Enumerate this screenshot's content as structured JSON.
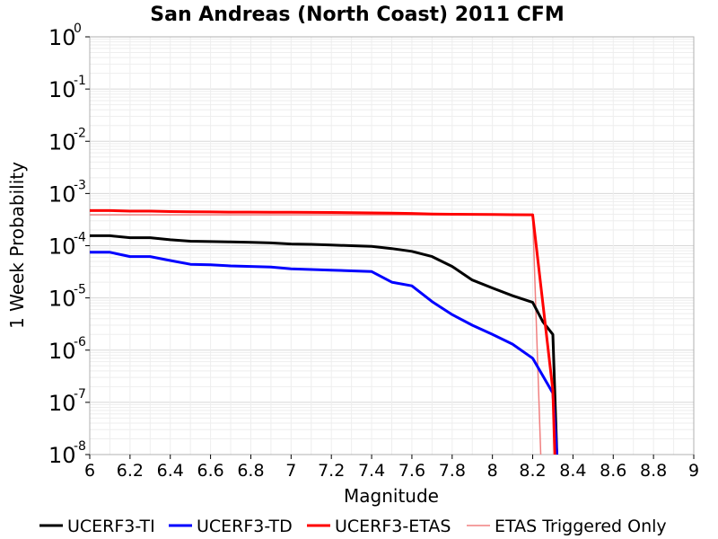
{
  "chart_data": {
    "type": "line",
    "title": "San Andreas (North Coast) 2011 CFM",
    "xlabel": "Magnitude",
    "ylabel": "1 Week Probability",
    "xlim": [
      6,
      9
    ],
    "ylim_log10": [
      -8,
      0
    ],
    "y_scale": "log",
    "grid": true,
    "legend_placement": "bottom",
    "x_ticks": [
      "6",
      "6.2",
      "6.4",
      "6.6",
      "6.8",
      "7",
      "7.2",
      "7.4",
      "7.6",
      "7.8",
      "8",
      "8.2",
      "8.4",
      "8.6",
      "8.8",
      "9"
    ],
    "y_ticks": [
      {
        "base": "10",
        "exp": "0"
      },
      {
        "base": "10",
        "exp": "-1"
      },
      {
        "base": "10",
        "exp": "-2"
      },
      {
        "base": "10",
        "exp": "-3"
      },
      {
        "base": "10",
        "exp": "-4"
      },
      {
        "base": "10",
        "exp": "-5"
      },
      {
        "base": "10",
        "exp": "-6"
      },
      {
        "base": "10",
        "exp": "-7"
      },
      {
        "base": "10",
        "exp": "-8"
      }
    ],
    "series": [
      {
        "name": "ETAS Triggered Only",
        "color": "#f08080",
        "width": 1.5,
        "x": [
          6.0,
          8.2,
          8.24
        ],
        "y": [
          0.00039,
          0.00039,
          1e-08
        ]
      },
      {
        "name": "UCERF3-TI",
        "color": "#000000",
        "width": 3,
        "x": [
          6.0,
          6.1,
          6.2,
          6.3,
          6.4,
          6.5,
          6.6,
          6.7,
          6.8,
          6.9,
          7.0,
          7.1,
          7.2,
          7.3,
          7.4,
          7.5,
          7.6,
          7.7,
          7.8,
          7.9,
          8.0,
          8.1,
          8.2,
          8.25,
          8.3,
          8.32
        ],
        "y": [
          0.000155,
          0.000155,
          0.000142,
          0.000142,
          0.00013,
          0.000122,
          0.00012,
          0.000118,
          0.000116,
          0.000113,
          0.000108,
          0.000106,
          0.000103,
          0.0001,
          9.7e-05,
          8.8e-05,
          7.8e-05,
          6.2e-05,
          4e-05,
          2.2e-05,
          1.55e-05,
          1.1e-05,
          8.2e-06,
          3.5e-06,
          2e-06,
          1e-08
        ]
      },
      {
        "name": "UCERF3-TD",
        "color": "#0000ff",
        "width": 3,
        "x": [
          6.0,
          6.1,
          6.2,
          6.3,
          6.4,
          6.5,
          6.6,
          6.7,
          6.8,
          6.9,
          7.0,
          7.1,
          7.2,
          7.3,
          7.4,
          7.5,
          7.6,
          7.7,
          7.8,
          7.9,
          8.0,
          8.1,
          8.2,
          8.3,
          8.32
        ],
        "y": [
          7.5e-05,
          7.5e-05,
          6.2e-05,
          6.2e-05,
          5.2e-05,
          4.4e-05,
          4.3e-05,
          4.1e-05,
          4e-05,
          3.9e-05,
          3.6e-05,
          3.5e-05,
          3.4e-05,
          3.3e-05,
          3.2e-05,
          2e-05,
          1.7e-05,
          8.5e-06,
          4.8e-06,
          3e-06,
          2e-06,
          1.3e-06,
          7e-07,
          1.5e-07,
          1e-08
        ]
      },
      {
        "name": "UCERF3-ETAS",
        "color": "#ff0000",
        "width": 3,
        "x": [
          6.0,
          6.1,
          6.2,
          6.3,
          6.4,
          6.5,
          6.6,
          6.7,
          6.8,
          6.9,
          7.0,
          7.1,
          7.2,
          7.3,
          7.4,
          7.5,
          7.6,
          7.7,
          7.8,
          7.9,
          8.0,
          8.1,
          8.2,
          8.3,
          8.31
        ],
        "y": [
          0.00047,
          0.00047,
          0.00046,
          0.00046,
          0.00045,
          0.000445,
          0.000443,
          0.00044,
          0.00044,
          0.000438,
          0.000437,
          0.000435,
          0.000433,
          0.00043,
          0.000425,
          0.00042,
          0.000415,
          0.000405,
          0.0004,
          0.000398,
          0.000395,
          0.000393,
          0.00039,
          1.7e-07,
          1e-08
        ]
      }
    ],
    "legend": [
      {
        "label": "UCERF3-TI",
        "color": "#000000",
        "width": 3
      },
      {
        "label": "UCERF3-TD",
        "color": "#0000ff",
        "width": 3
      },
      {
        "label": "UCERF3-ETAS",
        "color": "#ff0000",
        "width": 3
      },
      {
        "label": "ETAS Triggered Only",
        "color": "#f08080",
        "width": 1.5
      }
    ]
  }
}
